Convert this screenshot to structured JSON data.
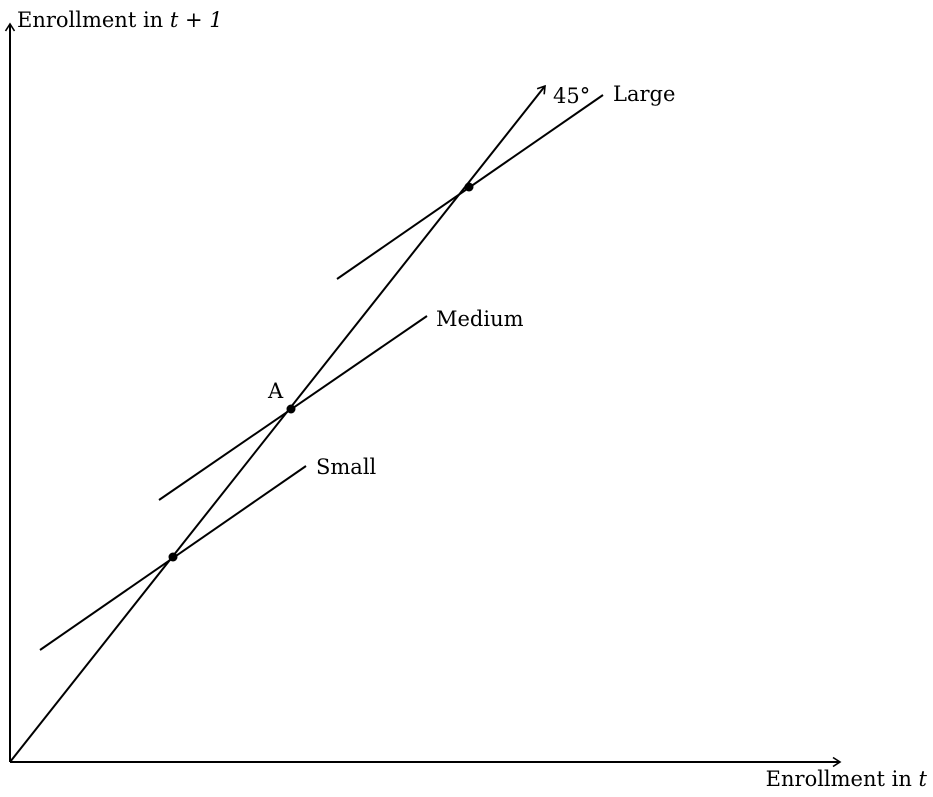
{
  "axes": {
    "y_label_text": "Enrollment in ",
    "y_label_math": "t + 1",
    "x_label_text": "Enrollment in ",
    "x_label_math": "t"
  },
  "lines": {
    "diagonal_label": "45°",
    "large_label": "Large",
    "medium_label": "Medium",
    "small_label": "Small"
  },
  "points": {
    "a_label": "A"
  }
}
